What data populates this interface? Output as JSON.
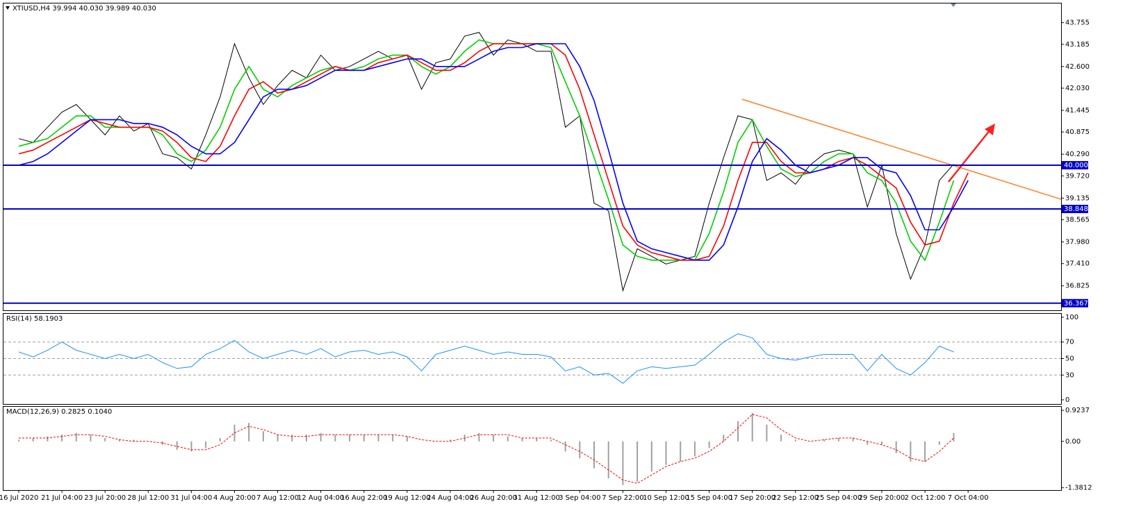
{
  "chart_data": [
    {
      "type": "line",
      "title": "XTIUSD,H4  39.994 40.030 39.989 40.030",
      "categories": [
        "16 Jul 2020",
        null,
        null,
        "21 Jul 04:00",
        null,
        null,
        "23 Jul 20:00",
        null,
        null,
        "28 Jul 12:00",
        null,
        null,
        "31 Jul 04:00",
        null,
        null,
        "4 Aug 20:00",
        null,
        null,
        "7 Aug 12:00",
        null,
        null,
        "12 Aug 04:00",
        null,
        null,
        "16 Aug 22:00",
        null,
        null,
        "19 Aug 12:00",
        null,
        null,
        "24 Aug 04:00",
        null,
        null,
        "26 Aug 20:00",
        null,
        null,
        "31 Aug 12:00",
        null,
        null,
        "3 Sep 04:00",
        null,
        null,
        "7 Sep 22:00",
        null,
        null,
        "10 Sep 12:00",
        null,
        null,
        "15 Sep 04:00",
        null,
        null,
        "17 Sep 20:00",
        null,
        null,
        "22 Sep 12:00",
        null,
        null,
        "25 Sep 04:00",
        null,
        null,
        "29 Sep 20:00",
        null,
        null,
        "2 Oct 12:00",
        null,
        null,
        "7 Oct 04:00"
      ],
      "ylim": [
        36.18,
        44.26
      ],
      "yticks": [
        43.755,
        43.185,
        {
          "value": 42.6,
          "label": "42.600"
        },
        {
          "value": 42.03,
          "label": "42.030"
        },
        41.445,
        40.875,
        {
          "value": 40.29,
          "label": "40.290"
        },
        {
          "value": 39.72,
          "label": "39.720"
        },
        39.135,
        38.565,
        {
          "value": 37.98,
          "label": "37.980"
        },
        {
          "value": 37.41,
          "label": "37.410"
        },
        36.825
      ],
      "levels": [
        {
          "value": 40,
          "label": "40.000"
        },
        {
          "value": 38.848,
          "label": "38.848"
        },
        {
          "value": 36.367,
          "label": "36.367"
        }
      ],
      "level_color": "#0000cc",
      "series": [
        {
          "color": "#000000",
          "style": "line",
          "values": [
            40.7,
            40.6,
            41.0,
            41.4,
            41.6,
            41.2,
            40.8,
            41.3,
            40.9,
            41.1,
            40.3,
            40.2,
            39.9,
            40.8,
            41.8,
            43.2,
            42.3,
            41.6,
            42.1,
            42.5,
            42.3,
            42.9,
            42.5,
            42.6,
            42.8,
            43.0,
            42.8,
            42.9,
            42.0,
            42.7,
            42.8,
            43.4,
            43.5,
            42.9,
            43.3,
            43.2,
            43.0,
            43.0,
            41.0,
            41.3,
            39.0,
            38.8,
            36.7,
            37.8,
            37.6,
            37.4,
            37.5,
            37.6,
            39.0,
            40.2,
            41.3,
            41.2,
            39.6,
            39.8,
            39.5,
            40.0,
            40.3,
            40.4,
            40.3,
            38.9,
            40.0,
            38.2,
            37.0,
            37.9,
            39.6,
            40.03,
            null
          ]
        },
        {
          "color": "#00d000",
          "style": "line",
          "values": [
            40.5,
            40.6,
            40.7,
            41.0,
            41.3,
            41.3,
            41.0,
            41.0,
            41.0,
            41.0,
            40.8,
            40.3,
            40.1,
            40.4,
            41.0,
            42.0,
            42.6,
            42.0,
            41.8,
            42.1,
            42.3,
            42.5,
            42.6,
            42.5,
            42.6,
            42.8,
            42.9,
            42.9,
            42.6,
            42.4,
            42.6,
            43.0,
            43.3,
            43.2,
            43.2,
            43.2,
            43.2,
            43.1,
            42.2,
            41.3,
            40.2,
            39.1,
            37.9,
            37.6,
            37.5,
            37.5,
            37.5,
            37.5,
            38.2,
            39.3,
            40.6,
            41.2,
            40.5,
            39.9,
            39.7,
            39.8,
            40.1,
            40.3,
            40.3,
            39.8,
            39.6,
            39.0,
            38.0,
            37.5,
            38.5,
            39.6,
            null
          ]
        },
        {
          "color": "#ff0000",
          "style": "line",
          "values": [
            40.3,
            40.4,
            40.6,
            40.8,
            41.0,
            41.2,
            41.1,
            41.0,
            41.0,
            41.0,
            40.9,
            40.6,
            40.2,
            40.1,
            40.5,
            41.3,
            42.0,
            42.2,
            41.9,
            42.0,
            42.2,
            42.4,
            42.6,
            42.5,
            42.5,
            42.7,
            42.8,
            42.9,
            42.7,
            42.5,
            42.5,
            42.7,
            43.0,
            43.2,
            43.2,
            43.2,
            43.2,
            43.2,
            42.9,
            42.0,
            40.8,
            39.6,
            38.4,
            37.9,
            37.7,
            37.6,
            37.5,
            37.5,
            37.6,
            38.4,
            39.6,
            40.6,
            40.6,
            40.1,
            39.8,
            39.8,
            39.9,
            40.1,
            40.2,
            40.0,
            39.7,
            39.4,
            38.5,
            37.9,
            38.0,
            39.0,
            39.8
          ]
        },
        {
          "color": "#0000ff",
          "style": "line",
          "values": [
            40.0,
            40.1,
            40.3,
            40.6,
            40.9,
            41.2,
            41.2,
            41.2,
            41.1,
            41.1,
            41.0,
            40.8,
            40.5,
            40.3,
            40.3,
            40.6,
            41.2,
            41.8,
            42.0,
            42.0,
            42.1,
            42.3,
            42.5,
            42.5,
            42.5,
            42.6,
            42.7,
            42.8,
            42.8,
            42.6,
            42.6,
            42.6,
            42.8,
            43.0,
            43.1,
            43.1,
            43.2,
            43.2,
            43.2,
            42.6,
            41.7,
            40.4,
            39.0,
            38.0,
            37.8,
            37.7,
            37.6,
            37.5,
            37.5,
            37.9,
            38.9,
            40.1,
            40.7,
            40.4,
            40.0,
            39.8,
            39.9,
            40.0,
            40.2,
            40.2,
            39.9,
            39.8,
            39.2,
            38.3,
            38.3,
            38.9,
            39.6
          ]
        }
      ]
    },
    {
      "type": "line",
      "title": "RSI(14) 58.1903",
      "ylim": [
        -5.9,
        104.2
      ],
      "yticks": [
        100,
        70,
        50,
        30,
        0
      ],
      "dashed_levels": [
        70,
        50,
        30
      ],
      "series": [
        {
          "color": "#1e90ff",
          "style": "line",
          "values": [
            58,
            52,
            60,
            70,
            60,
            55,
            50,
            55,
            50,
            55,
            45,
            38,
            40,
            55,
            62,
            72,
            58,
            50,
            55,
            60,
            55,
            62,
            52,
            58,
            60,
            55,
            58,
            52,
            35,
            55,
            60,
            65,
            60,
            55,
            58,
            55,
            55,
            52,
            35,
            40,
            30,
            32,
            20,
            35,
            40,
            38,
            40,
            42,
            55,
            70,
            80,
            75,
            55,
            50,
            48,
            52,
            55,
            55,
            55,
            35,
            55,
            38,
            30,
            45,
            65,
            58,
            null
          ]
        }
      ]
    },
    {
      "type": "line",
      "title": "MACD(12,26,9) 0.2825 0.1040",
      "ylim": [
        -1.45,
        1.03
      ],
      "yticks": [
        0.9237,
        {
          "value": 0,
          "label": "0.00"
        },
        -1.3812
      ],
      "series": [
        {
          "color": "#a0a0a0",
          "style": "bar",
          "values": [
            0.05,
            0.1,
            0.15,
            0.2,
            0.25,
            0.2,
            0.1,
            0.05,
            0.05,
            0.0,
            -0.1,
            -0.25,
            -0.3,
            -0.2,
            0.1,
            0.5,
            0.55,
            0.3,
            0.2,
            0.2,
            0.2,
            0.25,
            0.2,
            0.2,
            0.2,
            0.2,
            0.2,
            0.15,
            0,
            0,
            0.05,
            0.2,
            0.25,
            0.2,
            0.15,
            0.1,
            0.1,
            0.05,
            -0.3,
            -0.5,
            -0.8,
            -1.1,
            -1.3,
            -1.2,
            -0.9,
            -0.7,
            -0.6,
            -0.45,
            -0.2,
            0.2,
            0.6,
            0.85,
            0.5,
            0.2,
            0.05,
            0.0,
            0.05,
            0.1,
            0.1,
            -0.1,
            -0.1,
            -0.35,
            -0.6,
            -0.6,
            -0.1,
            0.25,
            null
          ]
        },
        {
          "color": "#ff0000",
          "style": "dashed",
          "values": [
            0.1,
            0.1,
            0.1,
            0.15,
            0.2,
            0.2,
            0.15,
            0.05,
            0.0,
            0.0,
            -0.05,
            -0.15,
            -0.25,
            -0.25,
            -0.1,
            0.25,
            0.45,
            0.35,
            0.2,
            0.15,
            0.15,
            0.2,
            0.2,
            0.2,
            0.2,
            0.2,
            0.2,
            0.15,
            0.05,
            0.0,
            0.0,
            0.1,
            0.2,
            0.2,
            0.2,
            0.1,
            0.1,
            0.1,
            -0.1,
            -0.3,
            -0.55,
            -0.85,
            -1.15,
            -1.25,
            -1.0,
            -0.75,
            -0.6,
            -0.5,
            -0.3,
            0.0,
            0.4,
            0.8,
            0.7,
            0.35,
            0.1,
            0.0,
            0.05,
            0.1,
            0.1,
            0.0,
            -0.1,
            -0.25,
            -0.5,
            -0.6,
            -0.3,
            0.1,
            null
          ]
        }
      ]
    }
  ]
}
